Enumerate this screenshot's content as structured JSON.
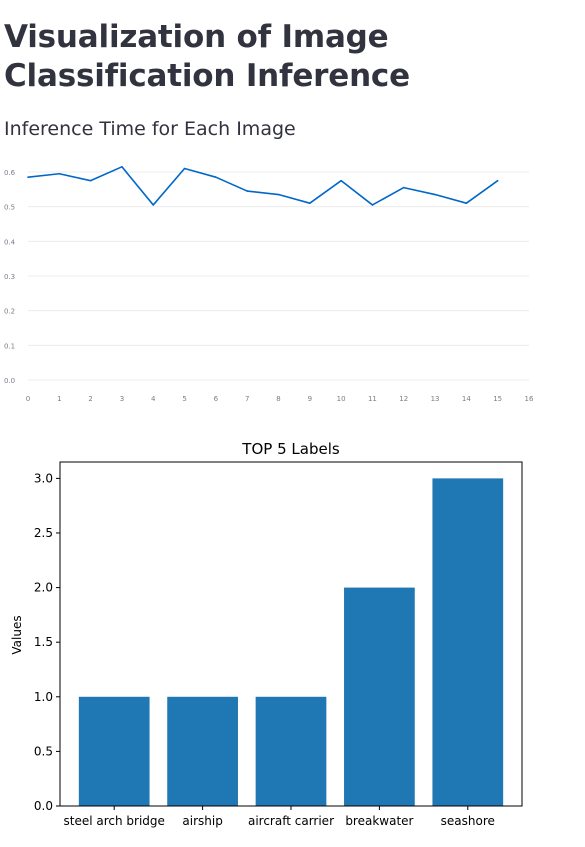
{
  "page": {
    "title": "Visualization of Image Classification Inference",
    "section_title": "Inference Time for Each Image"
  },
  "chart_data": [
    {
      "type": "line",
      "title": "",
      "xlabel": "",
      "ylabel": "",
      "x": [
        0,
        1,
        2,
        3,
        4,
        5,
        6,
        7,
        8,
        9,
        10,
        11,
        12,
        13,
        14,
        15
      ],
      "series": [
        {
          "values": [
            0.585,
            0.595,
            0.575,
            0.615,
            0.505,
            0.61,
            0.585,
            0.545,
            0.535,
            0.51,
            0.575,
            0.505,
            0.555,
            0.535,
            0.51,
            0.575
          ]
        }
      ],
      "xlim": [
        0,
        16
      ],
      "ylim": [
        0,
        0.6
      ],
      "xticks": [
        "0",
        "1",
        "2",
        "3",
        "4",
        "5",
        "6",
        "7",
        "8",
        "9",
        "10",
        "11",
        "12",
        "13",
        "14",
        "15",
        "16"
      ],
      "yticks": [
        "0.0",
        "0.1",
        "0.2",
        "0.3",
        "0.4",
        "0.5",
        "0.6"
      ],
      "grid": true,
      "line_color": "#0068c9"
    },
    {
      "type": "bar",
      "title": "TOP 5 Labels",
      "xlabel": "",
      "ylabel": "Values",
      "categories": [
        "steel arch bridge",
        "airship",
        "aircraft carrier",
        "breakwater",
        "seashore"
      ],
      "values": [
        1,
        1,
        1,
        2,
        3
      ],
      "ylim": [
        0,
        3.15
      ],
      "yticks": [
        "0.0",
        "0.5",
        "1.0",
        "1.5",
        "2.0",
        "2.5",
        "3.0"
      ],
      "grid": false,
      "bar_color": "#1f77b4"
    }
  ]
}
